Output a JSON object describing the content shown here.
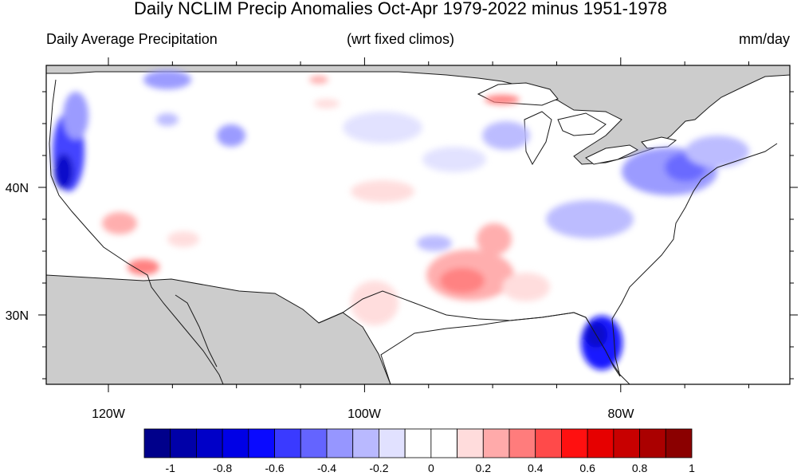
{
  "title": "Daily NCLIM Precip Anomalies Oct-Apr 1979-2022 minus 1951-1978",
  "subtitle_left": "Daily Average Precipitation",
  "subtitle_center": "(wrt fixed climos)",
  "subtitle_right": "mm/day",
  "axes": {
    "lon_labels": [
      "120W",
      "100W",
      "80W"
    ],
    "lat_labels": [
      "40N",
      "30N"
    ]
  },
  "colorbar": {
    "labels": [
      "-1",
      "-0.8",
      "-0.6",
      "-0.4",
      "-0.2",
      "0",
      "0.2",
      "0.4",
      "0.6",
      "0.8",
      "1"
    ],
    "colors": [
      "#00008b",
      "#0000a8",
      "#0000c8",
      "#0000e6",
      "#0a0aff",
      "#3a3aff",
      "#6464ff",
      "#9696ff",
      "#b9b9ff",
      "#e1e1ff",
      "#ffffff",
      "#ffffff",
      "#ffdcdc",
      "#ffaaaa",
      "#ff7c7c",
      "#ff4a4a",
      "#ff1010",
      "#e60000",
      "#c80000",
      "#aa0000",
      "#8b0000"
    ]
  },
  "colors": {
    "land_mask": "#cccccc",
    "coast": "#1a1a1a"
  }
}
